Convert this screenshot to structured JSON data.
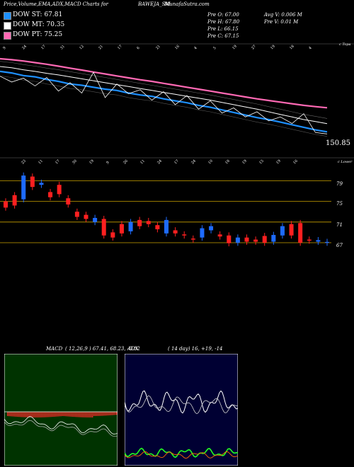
{
  "header": {
    "left_title": "Price,Volume,EMA,ADX,MACD Charts for",
    "symbol": "BAWEJA_SM",
    "site": "MunafaSutra.com"
  },
  "legend": [
    {
      "label": "DOW ST: 67.81",
      "color": "#1e90ff"
    },
    {
      "label": "DOW MT: 70.35",
      "color": "#ffffff"
    },
    {
      "label": "DOW PT: 75.25",
      "color": "#ff69b4"
    }
  ],
  "ohlc": {
    "open": "Pre  O: 67.00",
    "high": "Pre  H: 67.80",
    "low": "Pre  L: 66.15",
    "close": "Pre  C: 67.15",
    "avg_volume": "Avg V: 0.006  M",
    "volume": "Pre  V: 0.01 M"
  },
  "price_panel": {
    "top_label": "c Topa",
    "last_value": "150.85",
    "top_date_labels": [
      "9",
      "24",
      "17",
      "31",
      "12",
      "21",
      "17",
      "6",
      "21",
      "16",
      "4",
      "5",
      "19",
      "27",
      "19",
      "18",
      "4"
    ],
    "colors": {
      "pt": "#ff69b4",
      "st": "#1e90ff",
      "mt": "#ffffff",
      "close": "#ffffff"
    }
  },
  "candle_panel": {
    "top_label": "c Lower",
    "y_labels": [
      "79",
      "75",
      "71",
      "67"
    ],
    "date_labels": [
      "23",
      "11",
      "17",
      "30",
      "19",
      "9",
      "26",
      "11",
      "24",
      "17",
      "24",
      "10",
      "18",
      "19",
      "15",
      "19",
      "16"
    ],
    "colors": {
      "up": "#1e6bff",
      "down": "#ff2020",
      "grid": "#c8a000"
    }
  },
  "macd_panel": {
    "label": "MACD",
    "params": "( 12,26,9 ) 67.41,  68.23,  -0.82",
    "bg": "#003300"
  },
  "adx_panel": {
    "label": "ADX",
    "params": "( 14  day)  16,  +19,  -14",
    "bg": "#000033"
  },
  "chart_data": {
    "type": "line",
    "title": "Price,Volume,EMA,ADX,MACD Charts for BAWEJA_SM",
    "series": [
      {
        "name": "DOW ST",
        "last": 67.81
      },
      {
        "name": "DOW MT",
        "last": 70.35
      },
      {
        "name": "DOW PT",
        "last": 75.25
      }
    ],
    "ohlc_prev": {
      "open": 67.0,
      "high": 67.8,
      "low": 66.15,
      "close": 67.15
    },
    "volume_prev_millions": 0.01,
    "avg_volume_millions": 0.006,
    "candle_axis_ticks": [
      79,
      75,
      71,
      67
    ],
    "candles": [
      {
        "o": 75.0,
        "c": 73.8
      },
      {
        "o": 76.2,
        "c": 74.2
      },
      {
        "o": 75.4,
        "c": 80.0
      },
      {
        "o": 79.8,
        "c": 77.8
      },
      {
        "o": 78.2,
        "c": 78.6
      },
      {
        "o": 76.8,
        "c": 75.8
      },
      {
        "o": 78.2,
        "c": 76.4
      },
      {
        "o": 75.6,
        "c": 74.4
      },
      {
        "o": 73.0,
        "c": 72.0
      },
      {
        "o": 72.4,
        "c": 71.6
      },
      {
        "o": 71.0,
        "c": 71.8
      },
      {
        "o": 71.6,
        "c": 68.4
      },
      {
        "o": 69.0,
        "c": 68.0
      },
      {
        "o": 70.6,
        "c": 68.8
      },
      {
        "o": 69.2,
        "c": 71.0
      },
      {
        "o": 71.4,
        "c": 70.2
      },
      {
        "o": 71.2,
        "c": 70.6
      },
      {
        "o": 70.4,
        "c": 69.6
      },
      {
        "o": 68.8,
        "c": 71.4
      },
      {
        "o": 69.4,
        "c": 68.8
      },
      {
        "o": 68.6,
        "c": 68.4
      },
      {
        "o": 67.8,
        "c": 67.6
      },
      {
        "o": 68.0,
        "c": 69.8
      },
      {
        "o": 69.4,
        "c": 70.2
      },
      {
        "o": 68.6,
        "c": 68.2
      },
      {
        "o": 68.4,
        "c": 66.9
      },
      {
        "o": 67.0,
        "c": 68.0
      },
      {
        "o": 68.0,
        "c": 67.2
      },
      {
        "o": 67.6,
        "c": 67.2
      },
      {
        "o": 68.3,
        "c": 67.0
      },
      {
        "o": 67.2,
        "c": 68.5
      },
      {
        "o": 68.4,
        "c": 70.2
      },
      {
        "o": 70.6,
        "c": 68.4
      },
      {
        "o": 70.8,
        "c": 67.0
      },
      {
        "o": 67.6,
        "c": 67.4
      },
      {
        "o": 67.2,
        "c": 67.5
      },
      {
        "o": 67.0,
        "c": 67.15
      }
    ],
    "pt_line": [
      90.4,
      90.1,
      89.7,
      89.2,
      88.7,
      88.1,
      87.5,
      86.9,
      86.3,
      85.7,
      85.1,
      84.5,
      83.9,
      83.4,
      82.8,
      82.2,
      81.6,
      81.0,
      80.4,
      79.8,
      79.2,
      78.6,
      78.0,
      77.5,
      77.0,
      76.5,
      76.0,
      75.6,
      75.25
    ],
    "st_line": [
      86.5,
      86.0,
      85.2,
      84.8,
      84.0,
      83.4,
      82.6,
      82.2,
      81.6,
      81.0,
      80.6,
      79.8,
      79.2,
      78.8,
      78.0,
      77.4,
      76.8,
      76.0,
      75.4,
      74.6,
      73.8,
      73.0,
      72.2,
      71.6,
      70.8,
      70.0,
      69.2,
      68.4,
      67.81
    ],
    "mt_line": [
      88.0,
      87.6,
      87.0,
      86.5,
      85.9,
      85.4,
      84.8,
      84.2,
      83.6,
      83.0,
      82.4,
      81.8,
      81.2,
      80.6,
      80.0,
      79.4,
      78.8,
      78.2,
      77.6,
      76.9,
      76.2,
      75.5,
      74.8,
      74.0,
      73.2,
      72.4,
      71.6,
      71.0,
      70.35
    ],
    "close_line": [
      85.0,
      83.2,
      84.4,
      82.0,
      84.6,
      80.4,
      83.0,
      79.8,
      86.2,
      78.4,
      82.6,
      79.6,
      80.8,
      77.6,
      80.2,
      76.2,
      79.0,
      74.8,
      77.4,
      73.6,
      75.2,
      72.4,
      74.0,
      71.2,
      72.4,
      70.4,
      73.4,
      67.6,
      67.15
    ],
    "macd": {
      "macd": 67.41,
      "signal": 68.23,
      "hist": -0.82,
      "params": [
        12,
        26,
        9
      ]
    },
    "adx": {
      "period": 14,
      "adx": 16,
      "plus_di": 19,
      "minus_di": 14
    }
  }
}
